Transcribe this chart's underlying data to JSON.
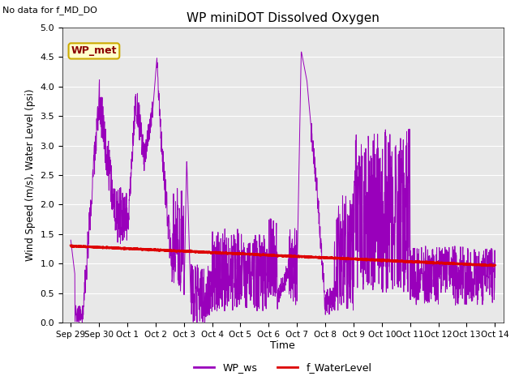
{
  "title": "WP miniDOT Dissolved Oxygen",
  "top_left_text": "No data for f_MD_DO",
  "ylabel": "Wind Speed (m/s), Water Level (psi)",
  "xlabel": "Time",
  "ylim": [
    0.0,
    5.0
  ],
  "yticks": [
    0.0,
    0.5,
    1.0,
    1.5,
    2.0,
    2.5,
    3.0,
    3.5,
    4.0,
    4.5,
    5.0
  ],
  "bg_color": "#e8e8e8",
  "wp_ws_color": "#9900bb",
  "f_wl_color": "#dd0000",
  "legend_label_ws": "WP_ws",
  "legend_label_wl": "f_WaterLevel",
  "annotation_text": "WP_met",
  "annotation_bg": "#ffffcc",
  "annotation_border": "#ccaa00",
  "x_tick_labels": [
    "Sep 29",
    "Sep 30",
    "Oct 1",
    "Oct 2",
    "Oct 3",
    "Oct 4",
    "Oct 5",
    "Oct 6",
    "Oct 7",
    "Oct 8",
    "Oct 9",
    "Oct 10",
    "Oct 11",
    "Oct 12",
    "Oct 13",
    "Oct 14"
  ],
  "x_tick_positions": [
    0,
    1,
    2,
    3,
    4,
    5,
    6,
    7,
    8,
    9,
    10,
    11,
    12,
    13,
    14,
    15
  ],
  "xlim": [
    -0.3,
    15.3
  ]
}
